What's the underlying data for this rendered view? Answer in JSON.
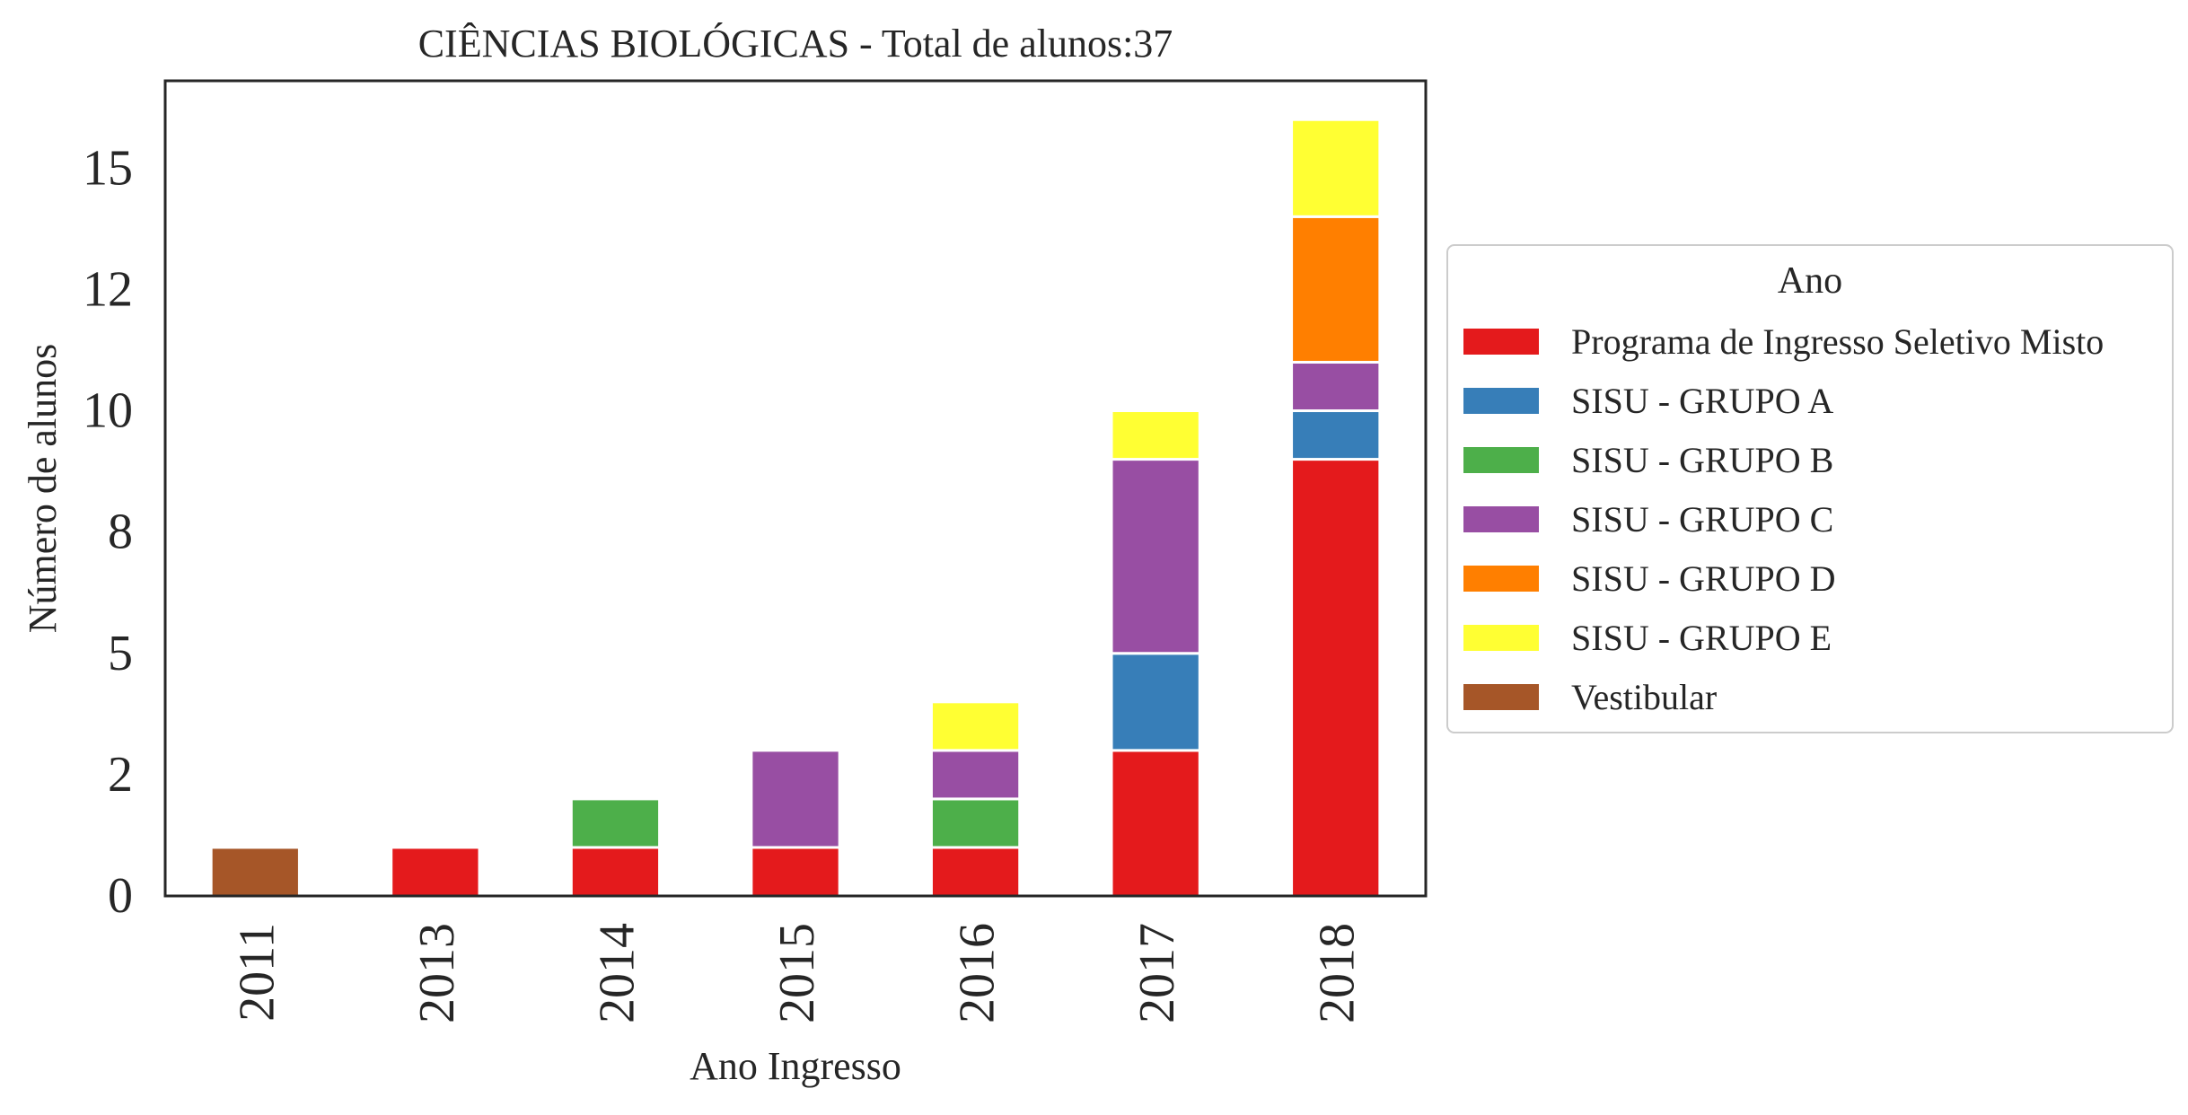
{
  "chart_data": {
    "type": "bar",
    "stacked": true,
    "title": "CIÊNCIAS BIOLÓGICAS - Total de alunos:37",
    "xlabel": "Ano Ingresso",
    "ylabel": "Número de alunos",
    "categories": [
      "2011",
      "2013",
      "2014",
      "2015",
      "2016",
      "2017",
      "2018"
    ],
    "ylim": [
      0,
      16.8
    ],
    "yticks": [
      0,
      2.5,
      5,
      7.5,
      10,
      12.5,
      15
    ],
    "ytick_labels": [
      "0",
      "2",
      "5",
      "8",
      "10",
      "12",
      "15"
    ],
    "legend_title": "Ano",
    "legend_position": "center-right-outside",
    "grid": false,
    "series": [
      {
        "name": "Programa de Ingresso Seletivo Misto",
        "color": "#e41a1c",
        "values": [
          0,
          1,
          1,
          1,
          1,
          3,
          9
        ]
      },
      {
        "name": "SISU - GRUPO A",
        "color": "#377eb8",
        "values": [
          0,
          0,
          0,
          0,
          0,
          2,
          1
        ]
      },
      {
        "name": "SISU - GRUPO B",
        "color": "#4daf4a",
        "values": [
          0,
          0,
          1,
          0,
          1,
          0,
          0
        ]
      },
      {
        "name": "SISU - GRUPO C",
        "color": "#984ea3",
        "values": [
          0,
          0,
          0,
          2,
          1,
          4,
          1
        ]
      },
      {
        "name": "SISU - GRUPO D",
        "color": "#ff7f00",
        "values": [
          0,
          0,
          0,
          0,
          0,
          0,
          3
        ]
      },
      {
        "name": "SISU - GRUPO E",
        "color": "#ffff33",
        "values": [
          0,
          0,
          0,
          0,
          1,
          1,
          2
        ]
      },
      {
        "name": "Vestibular",
        "color": "#a65628",
        "values": [
          1,
          0,
          0,
          0,
          0,
          0,
          0
        ]
      }
    ]
  }
}
